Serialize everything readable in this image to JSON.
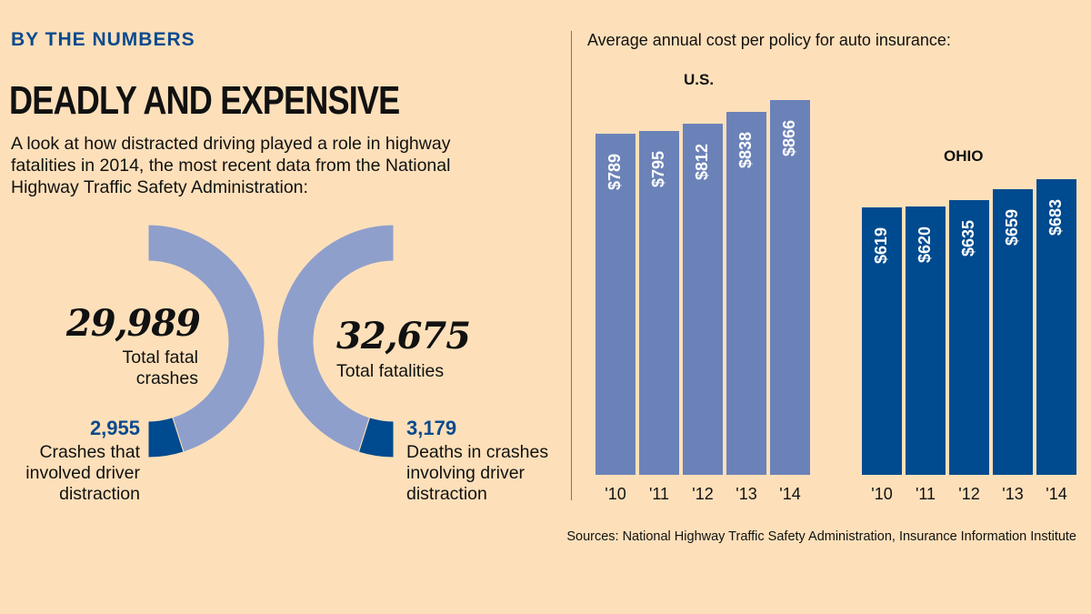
{
  "kicker": "BY THE NUMBERS",
  "headline": "DEADLY AND EXPENSIVE",
  "intro": "A look at how distracted driving played a role in highway fatalities in 2014, the most recent data from the National Highway Traffic Safety Administration:",
  "colors": {
    "background": "#fde0ba",
    "light_arc": "#8f9fcb",
    "us_bar": "#6b82b8",
    "dark_blue": "#004a8f"
  },
  "chart_data": [
    {
      "type": "pie",
      "variant": "half-donut",
      "segments": [
        {
          "label": "Total fatal crashes",
          "value": 29989,
          "display": "29,989"
        },
        {
          "label": "Crashes that involved driver distraction",
          "value": 2955,
          "display": "2,955"
        }
      ]
    },
    {
      "type": "pie",
      "variant": "half-donut",
      "segments": [
        {
          "label": "Total fatalities",
          "value": 32675,
          "display": "32,675"
        },
        {
          "label": "Deaths in crashes involving driver distraction",
          "value": 3179,
          "display": "3,179"
        }
      ]
    },
    {
      "type": "bar",
      "title": "Average annual cost per policy for auto insurance:",
      "groups": [
        {
          "name": "U.S.",
          "categories": [
            "'10",
            "'11",
            "'12",
            "'13",
            "'14"
          ],
          "values": [
            789,
            795,
            812,
            838,
            866
          ],
          "labels": [
            "$789",
            "$795",
            "$812",
            "$838",
            "$866"
          ]
        },
        {
          "name": "OHIO",
          "categories": [
            "'10",
            "'11",
            "'12",
            "'13",
            "'14"
          ],
          "values": [
            619,
            620,
            635,
            659,
            683
          ],
          "labels": [
            "$619",
            "$620",
            "$635",
            "$659",
            "$683"
          ]
        }
      ],
      "ylim": [
        0,
        866
      ]
    }
  ],
  "sources": "Sources: National Highway Traffic Safety Administration, Insurance Information Institute"
}
